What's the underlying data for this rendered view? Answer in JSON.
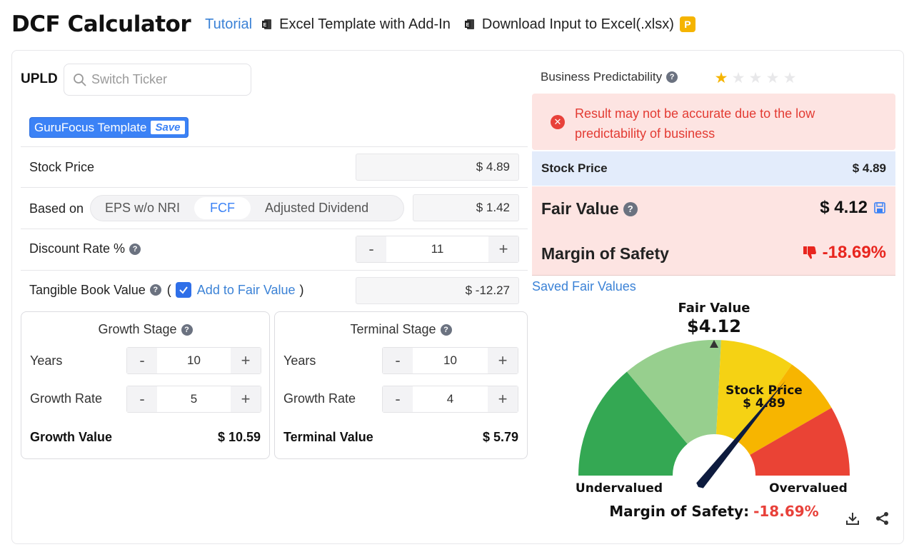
{
  "header": {
    "title": "DCF Calculator",
    "tutorial": "Tutorial",
    "excel_template": "Excel Template with Add-In",
    "download_input": "Download Input to Excel(.xlsx)",
    "premium_badge": "P"
  },
  "ticker": {
    "symbol": "UPLD",
    "search_placeholder": "Switch Ticker"
  },
  "template": {
    "name": "GuruFocus Template",
    "save_label": "Save"
  },
  "inputs": {
    "stock_price_label": "Stock Price",
    "stock_price_value": "$ 4.89",
    "based_on_label": "Based on",
    "based_on_options": [
      "EPS w/o NRI",
      "FCF",
      "Adjusted Dividend"
    ],
    "based_on_selected": "FCF",
    "based_on_value": "$ 1.42",
    "discount_rate_label": "Discount Rate %",
    "discount_rate_value": "11",
    "tangible_book_label": "Tangible Book Value",
    "paren_open": "(",
    "paren_close": ")",
    "add_to_fair_value": "Add to Fair Value",
    "add_to_fair_value_checked": true,
    "tangible_book_value": "$ -12.27"
  },
  "growth_stage": {
    "title": "Growth Stage",
    "years_label": "Years",
    "years_value": "10",
    "growth_rate_label": "Growth Rate",
    "growth_rate_value": "5",
    "value_label": "Growth Value",
    "value": "$ 10.59"
  },
  "terminal_stage": {
    "title": "Terminal Stage",
    "years_label": "Years",
    "years_value": "10",
    "growth_rate_label": "Growth Rate",
    "growth_rate_value": "4",
    "value_label": "Terminal Value",
    "value": "$ 5.79"
  },
  "stepper": {
    "minus": "-",
    "plus": "+"
  },
  "predictability": {
    "label": "Business Predictability",
    "stars_filled": 1,
    "stars_total": 5,
    "star_color": "#f5b400"
  },
  "alert": {
    "message": "Result may not be accurate due to the low predictability of business",
    "color": "#e33b33"
  },
  "summary": {
    "stock_price_label": "Stock Price",
    "stock_price_value": "$ 4.89",
    "fair_value_label": "Fair Value",
    "fair_value_value": "$ 4.12",
    "margin_label": "Margin of Safety",
    "margin_value": "-18.69%",
    "saved_fair_values": "Saved Fair Values"
  },
  "gauge": {
    "fair_value_label": "Fair Value",
    "fair_value": "$4.12",
    "stock_price_label": "Stock Price",
    "stock_price": "$ 4.89",
    "undervalued": "Undervalued",
    "overvalued": "Overvalued",
    "margin_label": "Margin of Safety:",
    "margin_value": "-18.69%",
    "colors": [
      "#34a853",
      "#97cf8e",
      "#f5d214",
      "#f7b500",
      "#ea4335"
    ]
  }
}
